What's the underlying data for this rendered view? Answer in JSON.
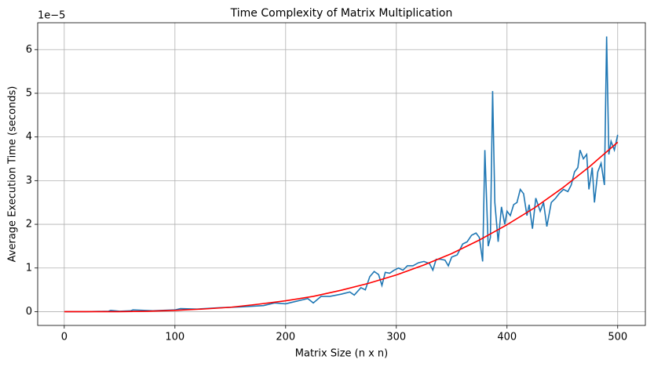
{
  "chart_data": {
    "type": "line",
    "title": "Time Complexity of Matrix Multiplication",
    "xlabel": "Matrix Size (n x n)",
    "ylabel": "Average Execution Time (seconds)",
    "y_offset_label": "1e−5",
    "xlim": [
      -24,
      525
    ],
    "ylim": [
      -0.315,
      6.615
    ],
    "xticks": [
      0,
      100,
      200,
      300,
      400,
      500
    ],
    "yticks": [
      0,
      1,
      2,
      3,
      4,
      5,
      6
    ],
    "grid": true,
    "series": [
      {
        "color": "#1f77b4",
        "x": [
          1,
          20,
          40,
          42,
          50,
          60,
          62,
          80,
          100,
          105,
          120,
          140,
          160,
          180,
          190,
          200,
          210,
          220,
          225,
          232,
          240,
          250,
          258,
          262,
          268,
          272,
          276,
          280,
          284,
          287,
          290,
          294,
          298,
          302,
          306,
          310,
          315,
          320,
          325,
          330,
          333,
          336,
          340,
          344,
          347,
          350,
          355,
          360,
          364,
          368,
          372,
          375,
          378,
          380,
          383,
          385,
          387,
          389,
          392,
          395,
          398,
          400,
          403,
          406,
          409,
          412,
          415,
          418,
          420,
          423,
          426,
          430,
          433,
          436,
          440,
          444,
          447,
          451,
          455,
          458,
          461,
          464,
          466,
          469,
          472,
          474,
          477,
          479,
          482,
          485,
          488,
          490,
          492,
          494,
          497,
          500
        ],
        "values": [
          0,
          0,
          0.01,
          0.03,
          0.01,
          0.02,
          0.04,
          0.02,
          0.04,
          0.07,
          0.06,
          0.09,
          0.11,
          0.14,
          0.2,
          0.18,
          0.24,
          0.3,
          0.2,
          0.35,
          0.35,
          0.4,
          0.45,
          0.38,
          0.55,
          0.5,
          0.8,
          0.92,
          0.85,
          0.6,
          0.9,
          0.88,
          0.95,
          1.0,
          0.95,
          1.05,
          1.05,
          1.12,
          1.15,
          1.1,
          0.95,
          1.2,
          1.2,
          1.18,
          1.05,
          1.25,
          1.3,
          1.55,
          1.6,
          1.75,
          1.8,
          1.7,
          1.15,
          3.7,
          1.5,
          1.7,
          5.05,
          2.5,
          1.6,
          2.4,
          2.0,
          2.3,
          2.2,
          2.45,
          2.5,
          2.8,
          2.7,
          2.2,
          2.45,
          1.9,
          2.6,
          2.3,
          2.5,
          1.95,
          2.5,
          2.6,
          2.7,
          2.8,
          2.75,
          2.9,
          3.2,
          3.3,
          3.7,
          3.5,
          3.6,
          2.8,
          3.3,
          2.5,
          3.2,
          3.4,
          2.9,
          6.3,
          3.6,
          3.9,
          3.7,
          4.05
        ]
      },
      {
        "color": "red",
        "x": [
          0,
          25,
          50,
          75,
          100,
          125,
          150,
          175,
          200,
          225,
          250,
          275,
          300,
          325,
          350,
          375,
          400,
          425,
          450,
          475,
          500
        ],
        "values": [
          0,
          0,
          0,
          0.01,
          0.03,
          0.06,
          0.1,
          0.17,
          0.25,
          0.35,
          0.49,
          0.65,
          0.84,
          1.07,
          1.33,
          1.64,
          1.99,
          2.38,
          2.83,
          3.33,
          3.88
        ]
      }
    ]
  }
}
